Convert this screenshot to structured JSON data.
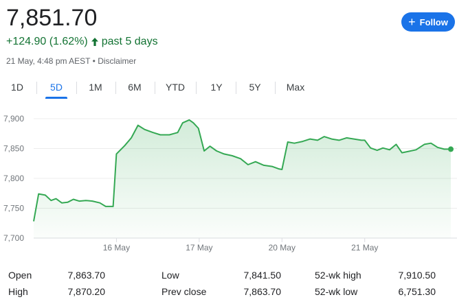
{
  "quote": {
    "price": "7,851.70",
    "change": "+124.90 (1.62%)",
    "period": "past 5 days",
    "timestamp": "21 May, 4:48 pm AEST",
    "separator": "•",
    "disclaimer": "Disclaimer",
    "change_color": "#137333",
    "arrow_icon": "arrow-up-icon"
  },
  "follow_button": {
    "label": "Follow",
    "icon": "plus-icon",
    "color": "#1a73e8"
  },
  "tabs": [
    {
      "label": "1D",
      "active": false
    },
    {
      "label": "5D",
      "active": true
    },
    {
      "label": "1M",
      "active": false
    },
    {
      "label": "6M",
      "active": false
    },
    {
      "label": "YTD",
      "active": false
    },
    {
      "label": "1Y",
      "active": false
    },
    {
      "label": "5Y",
      "active": false
    },
    {
      "label": "Max",
      "active": false
    }
  ],
  "chart_data": {
    "type": "area",
    "line_color": "#34a853",
    "fill_color": "#e6f4ea",
    "grid": true,
    "ylim": [
      7700,
      7915
    ],
    "y_ticks": [
      "7,900",
      "7,850",
      "7,800",
      "7,750",
      "7,700"
    ],
    "y_tick_values": [
      7900,
      7850,
      7800,
      7750,
      7700
    ],
    "x_ticks": [
      "16 May",
      "17 May",
      "20 May",
      "21 May"
    ],
    "x_tick_values": [
      1,
      2,
      3,
      4
    ],
    "x_range": [
      0,
      5.04
    ],
    "series": [
      {
        "x": [
          0.0,
          0.06,
          0.14,
          0.21,
          0.27,
          0.34,
          0.41,
          0.48,
          0.55,
          0.63,
          0.71,
          0.8,
          0.87,
          0.96,
          1.0,
          1.1,
          1.18,
          1.26,
          1.34,
          1.44,
          1.53,
          1.64,
          1.74,
          1.8,
          1.88,
          1.93,
          1.99,
          2.06,
          2.13,
          2.21,
          2.3,
          2.4,
          2.5,
          2.59,
          2.68,
          2.78,
          2.88,
          2.96,
          3.0,
          3.07,
          3.15,
          3.25,
          3.34,
          3.43,
          3.51,
          3.6,
          3.69,
          3.78,
          3.87,
          3.96,
          4.0,
          4.07,
          4.15,
          4.22,
          4.3,
          4.38,
          4.45,
          4.52,
          4.62,
          4.72,
          4.8,
          4.88,
          4.96,
          5.04
        ],
        "y": [
          7728,
          7774,
          7772,
          7763,
          7766,
          7759,
          7760,
          7765,
          7762,
          7763,
          7762,
          7759,
          7753,
          7753,
          7841,
          7855,
          7868,
          7889,
          7882,
          7877,
          7873,
          7873,
          7877,
          7893,
          7898,
          7893,
          7884,
          7846,
          7854,
          7846,
          7841,
          7838,
          7833,
          7823,
          7828,
          7822,
          7820,
          7816,
          7815,
          7861,
          7859,
          7862,
          7866,
          7864,
          7870,
          7866,
          7864,
          7868,
          7866,
          7864,
          7864,
          7851,
          7847,
          7851,
          7848,
          7857,
          7843,
          7845,
          7848,
          7857,
          7859,
          7852,
          7849,
          7849
        ],
        "last_value": 7849
      }
    ]
  },
  "stats": [
    {
      "label": "Open",
      "value": "7,863.70"
    },
    {
      "label": "High",
      "value": "7,870.20"
    },
    {
      "label": "Low",
      "value": "7,841.50"
    },
    {
      "label": "Prev close",
      "value": "7,863.70"
    },
    {
      "label": "52-wk high",
      "value": "7,910.50"
    },
    {
      "label": "52-wk low",
      "value": "6,751.30"
    }
  ]
}
